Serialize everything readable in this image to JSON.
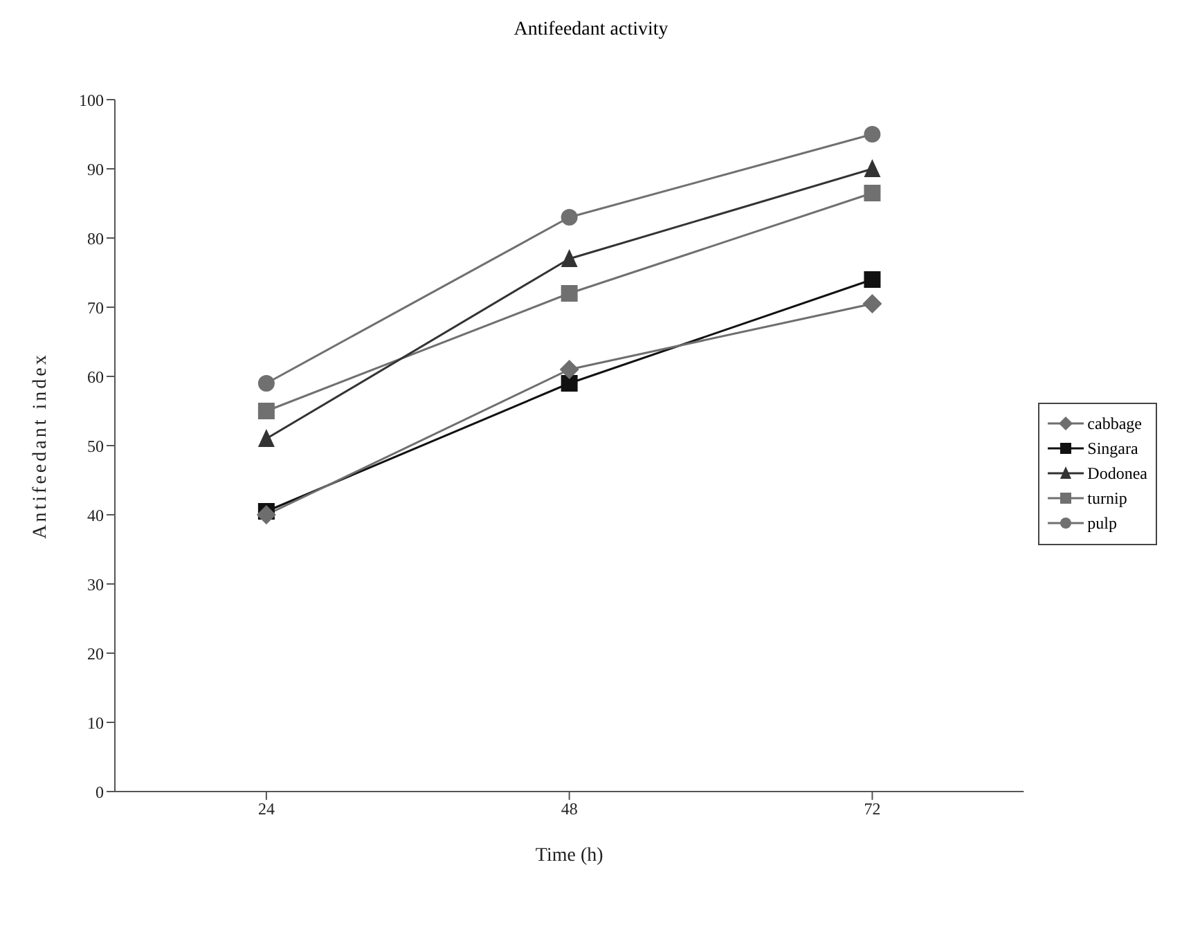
{
  "chart_data": {
    "type": "line",
    "title": "Antifeedant activity",
    "xlabel": "Time (h)",
    "ylabel": "Antifeedant index",
    "categories": [
      "24",
      "48",
      "72"
    ],
    "series": [
      {
        "name": "cabbage",
        "color": "#6e6e6e",
        "marker": "diamond",
        "values": [
          40,
          61,
          70.5
        ]
      },
      {
        "name": "Singara",
        "color": "#111111",
        "marker": "square",
        "values": [
          40.5,
          59,
          74
        ]
      },
      {
        "name": "Dodonea",
        "color": "#333333",
        "marker": "triangle",
        "values": [
          51,
          77,
          90
        ]
      },
      {
        "name": "turnip",
        "color": "#707070",
        "marker": "square",
        "values": [
          55,
          72,
          86.5
        ]
      },
      {
        "name": "pulp",
        "color": "#707070",
        "marker": "circle",
        "values": [
          59,
          83,
          95
        ]
      }
    ],
    "ylim": [
      0,
      100
    ],
    "yticks": [
      0,
      10,
      20,
      30,
      40,
      50,
      60,
      70,
      80,
      90,
      100
    ],
    "legend": "right",
    "line_style": "solid"
  }
}
